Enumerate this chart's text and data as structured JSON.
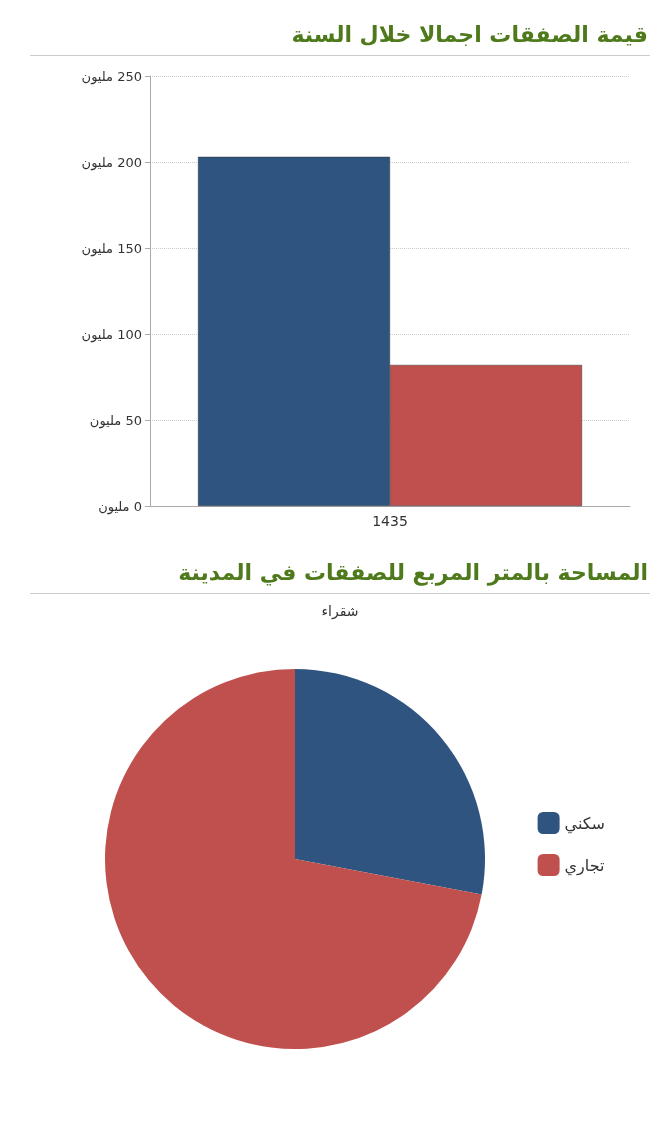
{
  "chart_data": [
    {
      "type": "bar",
      "title": "قيمة الصفقات اجمالا خلال السنة",
      "categories": [
        "1435"
      ],
      "series": [
        {
          "color": "#2f5480",
          "values": [
            203
          ]
        },
        {
          "color": "#c0504d",
          "values": [
            82
          ]
        }
      ],
      "ylim": [
        0,
        250
      ],
      "yticks": [
        {
          "value": 0,
          "label": "0 مليون"
        },
        {
          "value": 50,
          "label": "50 مليون"
        },
        {
          "value": 100,
          "label": "100 مليون"
        },
        {
          "value": 150,
          "label": "150 مليون"
        },
        {
          "value": 200,
          "label": "200 مليون"
        },
        {
          "value": 250,
          "label": "250 مليون"
        }
      ],
      "grid": "y",
      "legend": false
    },
    {
      "type": "pie",
      "title": "المساحة بالمتر المربع للصفقات في المدينة",
      "subtitle": "شقراء",
      "categories": [
        "سكني",
        "تجاري"
      ],
      "values": [
        28,
        72
      ],
      "colors": [
        "#2f5480",
        "#c0504d"
      ],
      "legend": "right"
    }
  ]
}
